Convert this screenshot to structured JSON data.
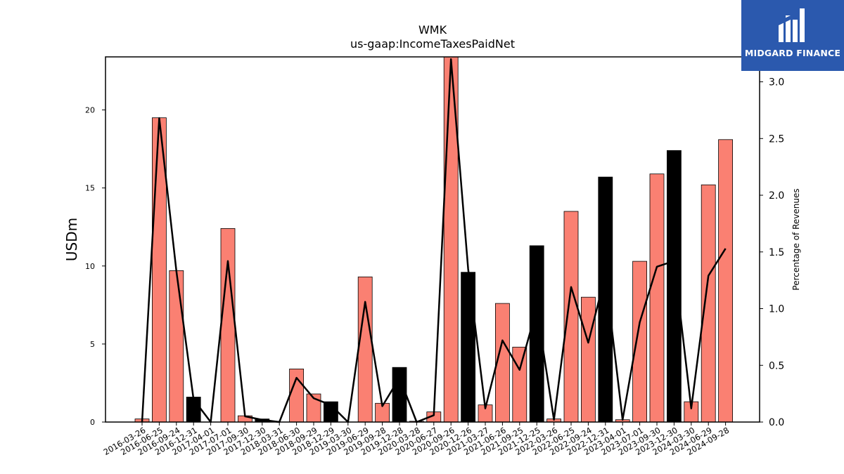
{
  "chart_data": {
    "type": "bar+line",
    "title": "WMK",
    "subtitle": "us-gaap:IncomeTaxesPaidNet",
    "ylabel": "USDm",
    "ylabel_right": "Percentage of Revenues",
    "ylim": [
      0,
      23.4
    ],
    "ylim_right": [
      0,
      3.22
    ],
    "yticks": [
      0,
      5,
      10,
      15,
      20
    ],
    "yticks_right": [
      0.0,
      0.5,
      1.0,
      1.5,
      2.0,
      2.5,
      3.0
    ],
    "categories": [
      "2016-03-26",
      "2016-06-25",
      "2016-09-24",
      "2016-12-31",
      "2017-04-01",
      "2017-07-01",
      "2017-09-30",
      "2017-12-30",
      "2018-03-31",
      "2018-06-30",
      "2018-09-29",
      "2018-12-29",
      "2019-03-30",
      "2019-06-29",
      "2019-09-28",
      "2019-12-28",
      "2020-03-28",
      "2020-06-27",
      "2020-09-26",
      "2020-12-26",
      "2021-03-27",
      "2021-06-26",
      "2021-09-25",
      "2021-12-25",
      "2022-03-26",
      "2022-06-25",
      "2022-09-24",
      "2022-12-31",
      "2023-04-01",
      "2023-07-01",
      "2023-09-30",
      "2023-12-30",
      "2024-03-30",
      "2024-06-29",
      "2024-09-28"
    ],
    "values": [
      0.2,
      19.5,
      9.7,
      1.6,
      0,
      12.4,
      0.4,
      0.2,
      0,
      3.4,
      1.8,
      1.3,
      0,
      9.3,
      1.2,
      3.5,
      0.05,
      0.65,
      23.4,
      9.6,
      1.1,
      7.6,
      4.8,
      11.3,
      0.2,
      13.5,
      8.0,
      15.7,
      0.15,
      10.3,
      15.9,
      17.4,
      1.3,
      15.2,
      18.1
    ],
    "highlight": [
      false,
      false,
      false,
      true,
      false,
      false,
      false,
      true,
      false,
      false,
      false,
      true,
      false,
      false,
      false,
      true,
      false,
      false,
      false,
      true,
      false,
      false,
      false,
      true,
      false,
      false,
      false,
      true,
      false,
      false,
      false,
      true,
      false,
      false,
      false
    ],
    "line_values": [
      0.0,
      2.68,
      1.33,
      0.2,
      0.0,
      1.42,
      0.05,
      0.02,
      0.0,
      0.39,
      0.21,
      0.15,
      0.0,
      1.06,
      0.14,
      0.39,
      0.0,
      0.06,
      3.2,
      1.35,
      0.12,
      0.72,
      0.46,
      1.0,
      0.02,
      1.19,
      0.7,
      1.3,
      0.02,
      0.88,
      1.37,
      1.42,
      0.12,
      1.29,
      1.53
    ],
    "colors": {
      "bar": "#fa8072",
      "highlight_bar": "#000000",
      "line": "#000000",
      "logo_bg": "#2b59ae"
    }
  },
  "logo": {
    "name": "MIDGARD FINANCE"
  }
}
